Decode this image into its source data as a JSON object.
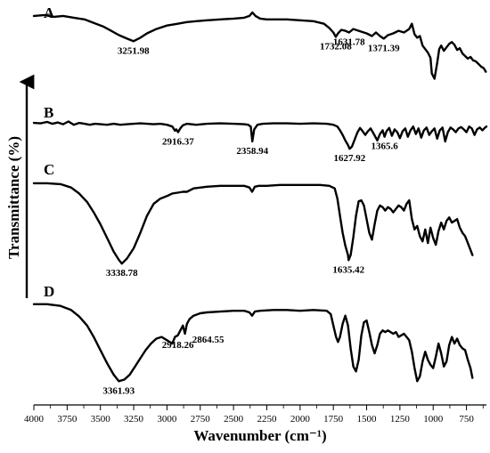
{
  "chart_data": {
    "type": "line",
    "xlabel": "Wavenumber (cm⁻¹)",
    "ylabel": "Transmittance (%)",
    "xlim": [
      4000,
      600
    ],
    "x_reversed": true,
    "x_ticks": [
      "4000",
      "3750",
      "3500",
      "3250",
      "3000",
      "2750",
      "2500",
      "2250",
      "2000",
      "1750",
      "1500",
      "1250",
      "1000",
      "750"
    ],
    "grid": false,
    "series": [
      {
        "name": "A",
        "x": [
          4000,
          3920,
          3850,
          3780,
          3700,
          3620,
          3550,
          3480,
          3420,
          3360,
          3300,
          3251.98,
          3200,
          3150,
          3080,
          3000,
          2920,
          2850,
          2780,
          2700,
          2600,
          2500,
          2420,
          2380,
          2358,
          2335,
          2300,
          2250,
          2180,
          2100,
          2000,
          1900,
          1820,
          1780,
          1750,
          1732.08,
          1715,
          1690,
          1660,
          1631.78,
          1600,
          1560,
          1500,
          1460,
          1430,
          1400,
          1371.39,
          1340,
          1300,
          1260,
          1220,
          1180,
          1160,
          1140,
          1120,
          1100,
          1080,
          1060,
          1040,
          1020,
          1010,
          990,
          970,
          955,
          940,
          920,
          900,
          880,
          860,
          840,
          820,
          800,
          780,
          760,
          740,
          720,
          700,
          680,
          660,
          640,
          620,
          605
        ],
        "y": [
          96,
          97,
          95,
          96,
          94,
          92,
          88,
          84,
          79,
          74,
          70,
          67,
          71,
          76,
          81,
          85,
          87,
          89,
          90,
          91,
          92,
          93,
          94,
          96,
          100,
          96,
          93,
          92,
          92,
          92,
          91,
          90,
          87,
          82,
          77,
          72,
          76,
          80,
          79,
          77,
          81,
          79,
          76,
          73,
          77,
          73,
          70,
          74,
          76,
          79,
          77,
          81,
          87,
          75,
          71,
          73,
          62,
          58,
          54,
          48,
          30,
          24,
          42,
          58,
          62,
          56,
          60,
          64,
          66,
          63,
          57,
          59,
          53,
          50,
          47,
          49,
          45,
          44,
          41,
          38,
          36,
          32
        ],
        "labels": [
          {
            "x": 3251.98,
            "text": "3251.98"
          },
          {
            "x": 1732.08,
            "text": "1732.08"
          },
          {
            "x": 1631.78,
            "text": "1631.78"
          },
          {
            "x": 1371.39,
            "text": "1371.39"
          }
        ]
      },
      {
        "name": "B",
        "x": [
          4000,
          3950,
          3900,
          3860,
          3820,
          3780,
          3740,
          3700,
          3660,
          3620,
          3580,
          3540,
          3500,
          3450,
          3400,
          3350,
          3300,
          3250,
          3200,
          3150,
          3100,
          3050,
          3000,
          2960,
          2940,
          2930,
          2916.37,
          2900,
          2880,
          2850,
          2820,
          2780,
          2700,
          2600,
          2500,
          2420,
          2390,
          2370,
          2358.94,
          2345,
          2320,
          2280,
          2200,
          2100,
          2000,
          1900,
          1800,
          1750,
          1720,
          1700,
          1680,
          1660,
          1640,
          1627.92,
          1610,
          1590,
          1570,
          1550,
          1530,
          1510,
          1490,
          1470,
          1450,
          1420,
          1400,
          1380,
          1365.6,
          1350,
          1330,
          1310,
          1290,
          1270,
          1250,
          1230,
          1210,
          1190,
          1170,
          1150,
          1130,
          1110,
          1090,
          1070,
          1050,
          1030,
          1010,
          990,
          970,
          950,
          930,
          910,
          890,
          870,
          850,
          830,
          810,
          790,
          770,
          750,
          730,
          710,
          690,
          670,
          650,
          630,
          610,
          600
        ],
        "y": [
          96,
          95,
          98,
          94,
          97,
          93,
          99,
          92,
          96,
          94,
          92,
          94,
          93,
          92,
          94,
          92,
          93,
          94,
          95,
          94,
          93,
          94,
          92,
          88,
          79,
          82,
          76,
          84,
          91,
          94,
          93,
          92,
          94,
          95,
          94,
          93,
          92,
          88,
          56,
          82,
          92,
          94,
          95,
          95,
          94,
          95,
          94,
          92,
          88,
          80,
          70,
          58,
          48,
          40,
          45,
          60,
          75,
          85,
          78,
          70,
          78,
          84,
          74,
          58,
          72,
          80,
          66,
          78,
          85,
          68,
          82,
          76,
          63,
          78,
          84,
          66,
          80,
          88,
          72,
          84,
          64,
          80,
          86,
          70,
          78,
          84,
          62,
          80,
          86,
          56,
          76,
          86,
          82,
          76,
          84,
          87,
          82,
          76,
          88,
          84,
          70,
          82,
          86,
          80,
          86,
          88
        ],
        "labels": [
          {
            "x": 2916.37,
            "text": "2916.37"
          },
          {
            "x": 2358.94,
            "text": "2358.94"
          },
          {
            "x": 1627.92,
            "text": "1627.92"
          },
          {
            "x": 1365.6,
            "text": "1365.6"
          }
        ]
      },
      {
        "name": "C",
        "x": [
          4000,
          3900,
          3800,
          3720,
          3660,
          3600,
          3550,
          3500,
          3450,
          3400,
          3360,
          3338.78,
          3300,
          3250,
          3200,
          3150,
          3100,
          3050,
          3000,
          2960,
          2920,
          2880,
          2850,
          2800,
          2700,
          2600,
          2500,
          2420,
          2380,
          2360,
          2340,
          2310,
          2250,
          2150,
          2050,
          1950,
          1850,
          1780,
          1740,
          1720,
          1700,
          1680,
          1660,
          1640,
          1635.42,
          1620,
          1600,
          1580,
          1560,
          1540,
          1520,
          1500,
          1480,
          1460,
          1440,
          1420,
          1400,
          1380,
          1360,
          1340,
          1320,
          1300,
          1280,
          1260,
          1240,
          1220,
          1200,
          1180,
          1160,
          1140,
          1120,
          1100,
          1080,
          1060,
          1040,
          1020,
          1000,
          980,
          960,
          940,
          920,
          900,
          880,
          860,
          840,
          820,
          800,
          780,
          760,
          740,
          720,
          705
        ],
        "y": [
          98,
          98,
          97,
          93,
          86,
          76,
          64,
          50,
          34,
          18,
          8,
          4,
          10,
          22,
          40,
          60,
          74,
          80,
          83,
          86,
          87,
          88,
          88,
          92,
          94,
          95,
          95,
          95,
          93,
          88,
          94,
          95,
          95,
          96,
          96,
          96,
          96,
          95,
          92,
          80,
          60,
          40,
          25,
          14,
          8,
          14,
          35,
          60,
          77,
          78,
          72,
          56,
          40,
          32,
          50,
          66,
          72,
          70,
          66,
          70,
          68,
          64,
          68,
          72,
          70,
          66,
          74,
          78,
          56,
          44,
          48,
          36,
          30,
          44,
          28,
          46,
          34,
          26,
          42,
          52,
          44,
          54,
          58,
          52,
          54,
          56,
          46,
          40,
          36,
          28,
          20,
          14
        ],
        "labels": [
          {
            "x": 3338.78,
            "text": "3338.78"
          },
          {
            "x": 1635.42,
            "text": "1635.42"
          }
        ]
      },
      {
        "name": "D",
        "x": [
          4000,
          3900,
          3800,
          3720,
          3660,
          3600,
          3550,
          3500,
          3450,
          3400,
          3361.93,
          3320,
          3280,
          3240,
          3200,
          3160,
          3120,
          3080,
          3040,
          3000,
          2960,
          2940,
          2918.26,
          2900,
          2880,
          2864.55,
          2850,
          2830,
          2800,
          2750,
          2700,
          2600,
          2500,
          2420,
          2380,
          2360,
          2340,
          2300,
          2200,
          2100,
          2000,
          1900,
          1800,
          1770,
          1750,
          1730,
          1715,
          1700,
          1680,
          1660,
          1640,
          1620,
          1600,
          1580,
          1560,
          1540,
          1520,
          1500,
          1480,
          1460,
          1440,
          1420,
          1400,
          1380,
          1360,
          1340,
          1320,
          1300,
          1280,
          1260,
          1240,
          1220,
          1200,
          1180,
          1160,
          1140,
          1120,
          1100,
          1080,
          1060,
          1040,
          1020,
          1000,
          980,
          960,
          940,
          920,
          900,
          880,
          860,
          840,
          820,
          800,
          780,
          760,
          740,
          720,
          705
        ],
        "y": [
          98,
          98,
          96,
          91,
          83,
          72,
          58,
          42,
          26,
          12,
          4,
          6,
          12,
          22,
          32,
          42,
          50,
          56,
          58,
          54,
          50,
          58,
          60,
          66,
          72,
          62,
          74,
          80,
          84,
          87,
          88,
          89,
          90,
          90,
          88,
          84,
          89,
          90,
          91,
          91,
          90,
          91,
          90,
          86,
          72,
          58,
          52,
          58,
          74,
          84,
          72,
          44,
          22,
          16,
          30,
          60,
          76,
          78,
          64,
          48,
          38,
          48,
          62,
          66,
          64,
          66,
          64,
          62,
          64,
          58,
          60,
          62,
          58,
          54,
          40,
          20,
          4,
          10,
          28,
          40,
          30,
          24,
          20,
          34,
          50,
          38,
          22,
          28,
          48,
          58,
          50,
          56,
          48,
          44,
          42,
          30,
          20,
          8
        ],
        "labels": [
          {
            "x": 3361.93,
            "text": "3361.93"
          },
          {
            "x": 2918.26,
            "text": "2918.26"
          },
          {
            "x": 2864.55,
            "text": "2864.55"
          }
        ]
      }
    ]
  }
}
